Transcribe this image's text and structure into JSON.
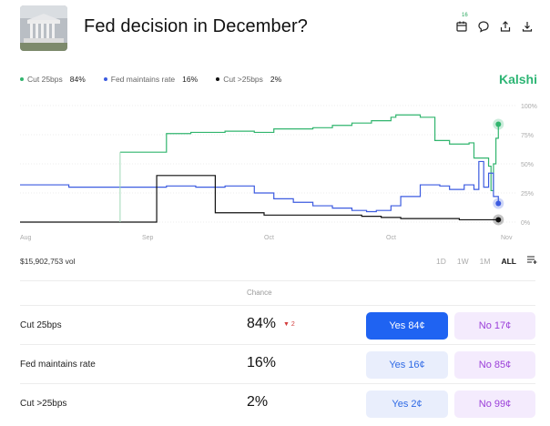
{
  "header": {
    "title": "Fed decision in December?",
    "badge_count": "16"
  },
  "legend": [
    {
      "label": "Cut 25bps",
      "value": "84%",
      "color": "#31b56e"
    },
    {
      "label": "Fed maintains rate",
      "value": "16%",
      "color": "#3c5be0"
    },
    {
      "label": "Cut >25bps",
      "value": "2%",
      "color": "#111111"
    }
  ],
  "brand": "Kalshi",
  "chart_data": {
    "type": "line",
    "x_ticks": [
      "Aug",
      "Sep",
      "Oct",
      "Oct",
      "Nov"
    ],
    "y_ticks": [
      "100%",
      "75%",
      "50%",
      "25%",
      "0%"
    ],
    "ylim": [
      0,
      100
    ],
    "x_range": [
      0,
      100
    ],
    "series": [
      {
        "name": "Cut 25bps",
        "color": "#31b56e",
        "x": [
          0,
          8,
          15,
          20.5,
          26,
          30,
          35,
          42,
          48,
          52,
          56,
          60,
          64,
          68,
          72,
          76,
          77,
          82,
          85,
          88,
          92,
          93,
          96,
          96.5,
          97,
          97.5,
          98
        ],
        "y": [
          null,
          null,
          null,
          60,
          60,
          76,
          77,
          78,
          77,
          80,
          80,
          81,
          83,
          85,
          87,
          90,
          92,
          90,
          70,
          67,
          68,
          55,
          48,
          27,
          50,
          72,
          84
        ]
      },
      {
        "name": "Fed maintains rate",
        "color": "#3c5be0",
        "x": [
          0,
          5,
          10,
          15,
          20.5,
          26,
          30,
          36,
          42,
          48,
          52,
          56,
          60,
          64,
          68,
          71,
          73,
          76,
          78,
          82,
          86,
          88,
          91,
          93,
          94,
          95,
          96,
          97,
          98
        ],
        "y": [
          32,
          32,
          30,
          30,
          30,
          30,
          31,
          30,
          31,
          25,
          20,
          17,
          14,
          12,
          10,
          9,
          10,
          14,
          22,
          32,
          31,
          28,
          32,
          28,
          52,
          30,
          42,
          22,
          16
        ]
      },
      {
        "name": "Cut >25bps",
        "color": "#111111",
        "x": [
          0,
          20.5,
          26,
          28,
          30,
          36,
          40,
          44,
          50,
          56,
          62,
          66,
          70,
          74,
          78,
          82,
          86,
          90,
          94,
          98
        ],
        "y": [
          0,
          0,
          0,
          40,
          40,
          40,
          8,
          8,
          6,
          6,
          6,
          6,
          5,
          4,
          3,
          3,
          3,
          2,
          2,
          2
        ]
      }
    ],
    "xlabel": "",
    "ylabel": ""
  },
  "volume": "$15,902,753 vol",
  "ranges": [
    "1D",
    "1W",
    "1M",
    "ALL"
  ],
  "active_range": "ALL",
  "table": {
    "chance_header": "Chance",
    "rows": [
      {
        "label": "Cut 25bps",
        "pct": "84%",
        "delta": "▼ 2",
        "yes": "Yes 84¢",
        "no": "No 17¢"
      },
      {
        "label": "Fed maintains rate",
        "pct": "16%",
        "delta": "",
        "yes": "Yes 16¢",
        "no": "No 85¢"
      },
      {
        "label": "Cut >25bps",
        "pct": "2%",
        "delta": "",
        "yes": "Yes 2¢",
        "no": "No 99¢"
      }
    ]
  }
}
